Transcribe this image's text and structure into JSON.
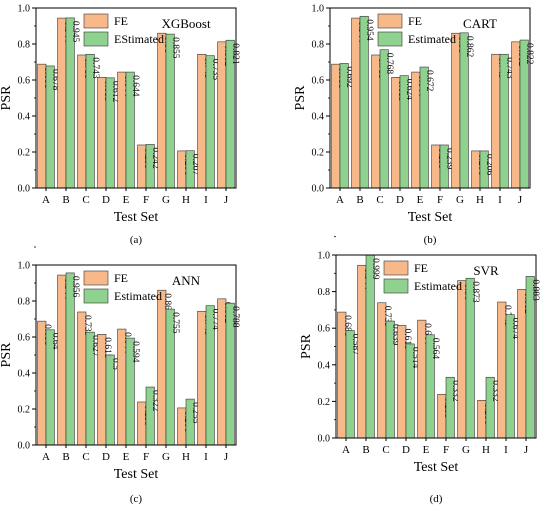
{
  "colors": {
    "fe": "#f7b98a",
    "estimated": "#8fd18f",
    "axis": "#000000"
  },
  "chart_data": [
    {
      "type": "bar",
      "panel_label": "(a)",
      "title": "XGBoost",
      "xlabel": "Test Set",
      "ylabel": "PSR",
      "ylim": [
        0,
        1.0
      ],
      "yticks": [
        "0.0",
        "0.2",
        "0.4",
        "0.6",
        "0.8",
        "1.0"
      ],
      "categories": [
        "A",
        "B",
        "C",
        "D",
        "E",
        "F",
        "G",
        "H",
        "I",
        "J"
      ],
      "legend": "top-left",
      "series": [
        {
          "name": "FE",
          "values": [
            0.688,
            0.944,
            0.739,
            0.615,
            0.644,
            0.239,
            0.86,
            0.206,
            0.743,
            0.812
          ],
          "labels": [
            "0.688",
            "0.944",
            "0.739",
            "0.615",
            "0.644",
            "0.239",
            "0.86",
            "0.206",
            "0.743",
            "0.812"
          ]
        },
        {
          "name": "EStimated",
          "values": [
            0.678,
            0.945,
            0.743,
            0.612,
            0.644,
            0.242,
            0.855,
            0.207,
            0.735,
            0.821
          ],
          "labels": [
            "0.678",
            "0.945",
            "0.743",
            "0.612",
            "0.644",
            "0.242",
            "0.855",
            "0.207",
            "0.735",
            "0.821"
          ]
        }
      ]
    },
    {
      "type": "bar",
      "panel_label": "(b)",
      "title": "CART",
      "xlabel": "Test Set",
      "ylabel": "PSR",
      "ylim": [
        0,
        1.0
      ],
      "yticks": [
        "0.0",
        "0.2",
        "0.4",
        "0.6",
        "0.8",
        "1.0"
      ],
      "categories": [
        "A",
        "B",
        "C",
        "D",
        "E",
        "F",
        "G",
        "H",
        "I",
        "J"
      ],
      "legend": "top-left",
      "series": [
        {
          "name": "FE",
          "values": [
            0.688,
            0.944,
            0.739,
            0.615,
            0.644,
            0.239,
            0.86,
            0.206,
            0.743,
            0.812
          ],
          "labels": [
            "0.688",
            "0.944",
            "0.739",
            "0.615",
            "0.644",
            "0.239",
            "0.86",
            "0.206",
            "0.743",
            "0.812"
          ]
        },
        {
          "name": "Estimated",
          "values": [
            0.692,
            0.954,
            0.768,
            0.624,
            0.672,
            0.239,
            0.862,
            0.206,
            0.743,
            0.822
          ],
          "labels": [
            "0.692",
            "0.954",
            "0.768",
            "0.624",
            "0.672",
            "0.239",
            "0.862",
            "0.206",
            "0.743",
            "0.822"
          ]
        }
      ]
    },
    {
      "type": "bar",
      "panel_label": "(c)",
      "title": "ANN",
      "xlabel": "Test Set",
      "ylabel": "PSR",
      "ylim": [
        0,
        1.0
      ],
      "yticks": [
        "0.0",
        "0.2",
        "0.4",
        "0.6",
        "0.8",
        "1.0"
      ],
      "categories": [
        "A",
        "B",
        "C",
        "D",
        "E",
        "F",
        "G",
        "H",
        "I",
        "J"
      ],
      "legend": "top-left",
      "series": [
        {
          "name": "FE",
          "values": [
            0.688,
            0.944,
            0.739,
            0.615,
            0.644,
            0.239,
            0.86,
            0.206,
            0.743,
            0.812
          ],
          "labels": [
            "0.688",
            "0.944",
            "0.739",
            "0.615",
            "0.644",
            "0.239",
            "0.86",
            "0.206",
            "0.743",
            "0.812"
          ]
        },
        {
          "name": "Estimated",
          "values": [
            0.64,
            0.956,
            0.627,
            0.5,
            0.594,
            0.322,
            0.755,
            0.255,
            0.774,
            0.788
          ],
          "labels": [
            "0.64",
            "0.956",
            "0.627",
            "0.5",
            "0.594",
            "0.322",
            "0.755",
            "0.255",
            "0.774",
            "0.788"
          ]
        }
      ]
    },
    {
      "type": "bar",
      "panel_label": "(d)",
      "title": "SVR",
      "xlabel": "Test Set",
      "ylabel": "PSR",
      "ylim": [
        0,
        1.0
      ],
      "yticks": [
        "0.0",
        "0.2",
        "0.4",
        "0.6",
        "0.8",
        "1.0"
      ],
      "categories": [
        "A",
        "B",
        "C",
        "D",
        "E",
        "F",
        "G",
        "H",
        "I",
        "J"
      ],
      "legend": "top-left",
      "series": [
        {
          "name": "FE",
          "values": [
            0.688,
            0.944,
            0.739,
            0.615,
            0.644,
            0.239,
            0.86,
            0.206,
            0.743,
            0.812
          ],
          "labels": [
            "0.688",
            "0.944",
            "0.739",
            "0.615",
            "0.644",
            "0.239",
            "0.86",
            "0.206",
            "0.743",
            "0.812"
          ]
        },
        {
          "name": "Estimated",
          "values": [
            0.587,
            0.999,
            0.639,
            0.514,
            0.564,
            0.332,
            0.873,
            0.332,
            0.674,
            0.883
          ],
          "labels": [
            "0.587",
            "0.999",
            "0.639",
            "0.514",
            "0.564",
            "0.332",
            "0.873",
            "0.332",
            "0.674",
            "0.883"
          ]
        }
      ]
    }
  ]
}
